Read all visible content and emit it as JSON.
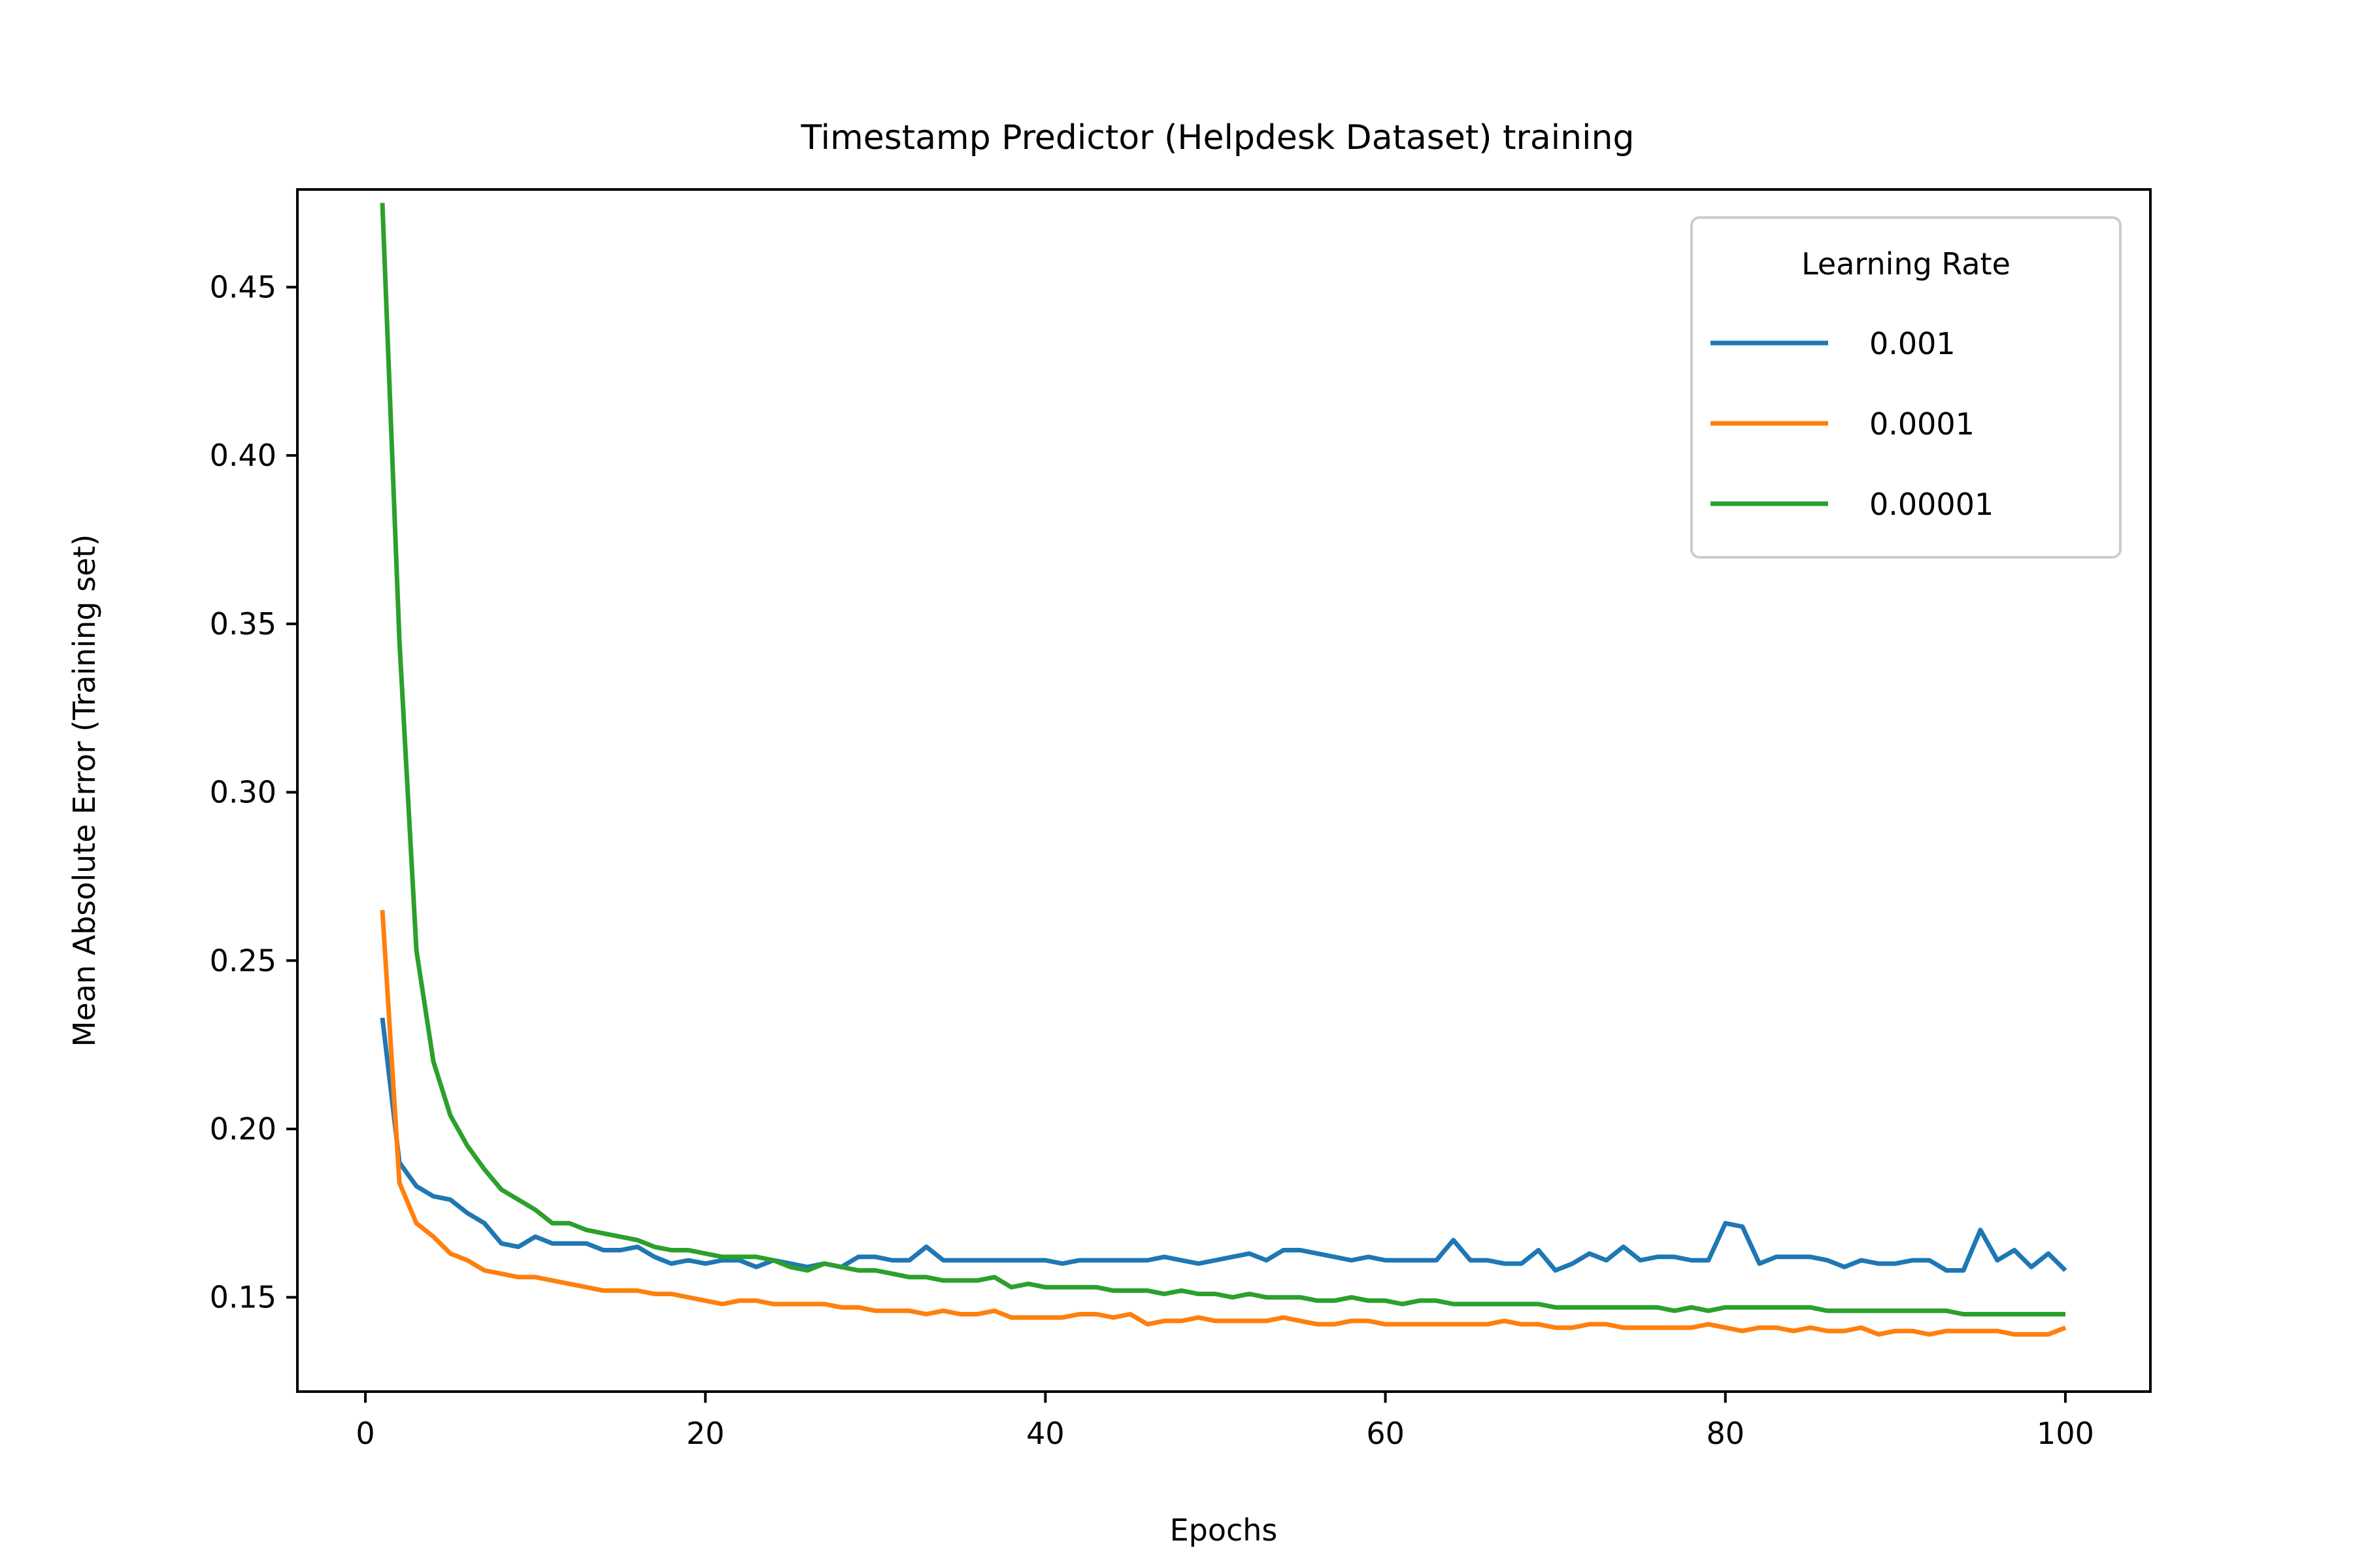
{
  "chart_data": {
    "type": "line",
    "title": "Timestamp Predictor (Helpdesk Dataset) training",
    "xlabel": "Epochs",
    "ylabel": "Mean Absolute Error (Training set)",
    "xlim": [
      -4,
      105
    ],
    "ylim": [
      0.122,
      0.479
    ],
    "xticks": [
      0,
      20,
      40,
      60,
      80,
      100
    ],
    "yticks": [
      0.15,
      0.2,
      0.25,
      0.3,
      0.35,
      0.4,
      0.45
    ],
    "xtick_labels": [
      "0",
      "20",
      "40",
      "60",
      "80",
      "100"
    ],
    "ytick_labels": [
      "0.15",
      "0.20",
      "0.25",
      "0.30",
      "0.35",
      "0.40",
      "0.45"
    ],
    "grid": false,
    "legend": {
      "title": "Learning Rate",
      "position": "top-right"
    },
    "series": [
      {
        "name": "0.001",
        "color": "#1f77b4",
        "x": [
          1,
          2,
          3,
          4,
          5,
          6,
          7,
          8,
          9,
          10,
          11,
          12,
          13,
          14,
          15,
          16,
          17,
          18,
          19,
          20,
          21,
          22,
          23,
          24,
          25,
          26,
          27,
          28,
          29,
          30,
          31,
          32,
          33,
          34,
          35,
          36,
          37,
          38,
          39,
          40,
          41,
          42,
          43,
          44,
          45,
          46,
          47,
          48,
          49,
          50,
          51,
          52,
          53,
          54,
          55,
          56,
          57,
          58,
          59,
          60,
          61,
          62,
          63,
          64,
          65,
          66,
          67,
          68,
          69,
          70,
          71,
          72,
          73,
          74,
          75,
          76,
          77,
          78,
          79,
          80,
          81,
          82,
          83,
          84,
          85,
          86,
          87,
          88,
          89,
          90,
          91,
          92,
          93,
          94,
          95,
          96,
          97,
          98,
          99,
          100
        ],
        "values": [
          0.233,
          0.19,
          0.183,
          0.18,
          0.179,
          0.175,
          0.172,
          0.166,
          0.165,
          0.168,
          0.166,
          0.166,
          0.166,
          0.164,
          0.164,
          0.165,
          0.162,
          0.16,
          0.161,
          0.16,
          0.161,
          0.161,
          0.159,
          0.161,
          0.16,
          0.159,
          0.16,
          0.159,
          0.162,
          0.162,
          0.161,
          0.161,
          0.165,
          0.161,
          0.161,
          0.161,
          0.161,
          0.161,
          0.161,
          0.161,
          0.16,
          0.161,
          0.161,
          0.161,
          0.161,
          0.161,
          0.162,
          0.161,
          0.16,
          0.161,
          0.162,
          0.163,
          0.161,
          0.164,
          0.164,
          0.163,
          0.162,
          0.161,
          0.162,
          0.161,
          0.161,
          0.161,
          0.161,
          0.167,
          0.161,
          0.161,
          0.16,
          0.16,
          0.164,
          0.158,
          0.16,
          0.163,
          0.161,
          0.165,
          0.161,
          0.162,
          0.162,
          0.161,
          0.161,
          0.172,
          0.171,
          0.16,
          0.162,
          0.162,
          0.162,
          0.161,
          0.159,
          0.161,
          0.16,
          0.16,
          0.161,
          0.161,
          0.158,
          0.158,
          0.17,
          0.161,
          0.164,
          0.159,
          0.163,
          0.158
        ]
      },
      {
        "name": "0.0001",
        "color": "#ff7f0e",
        "x": [
          1,
          2,
          3,
          4,
          5,
          6,
          7,
          8,
          9,
          10,
          11,
          12,
          13,
          14,
          15,
          16,
          17,
          18,
          19,
          20,
          21,
          22,
          23,
          24,
          25,
          26,
          27,
          28,
          29,
          30,
          31,
          32,
          33,
          34,
          35,
          36,
          37,
          38,
          39,
          40,
          41,
          42,
          43,
          44,
          45,
          46,
          47,
          48,
          49,
          50,
          51,
          52,
          53,
          54,
          55,
          56,
          57,
          58,
          59,
          60,
          61,
          62,
          63,
          64,
          65,
          66,
          67,
          68,
          69,
          70,
          71,
          72,
          73,
          74,
          75,
          76,
          77,
          78,
          79,
          80,
          81,
          82,
          83,
          84,
          85,
          86,
          87,
          88,
          89,
          90,
          91,
          92,
          93,
          94,
          95,
          96,
          97,
          98,
          99,
          100
        ],
        "values": [
          0.265,
          0.184,
          0.172,
          0.168,
          0.163,
          0.161,
          0.158,
          0.157,
          0.156,
          0.156,
          0.155,
          0.154,
          0.153,
          0.152,
          0.152,
          0.152,
          0.151,
          0.151,
          0.15,
          0.149,
          0.148,
          0.149,
          0.149,
          0.148,
          0.148,
          0.148,
          0.148,
          0.147,
          0.147,
          0.146,
          0.146,
          0.146,
          0.145,
          0.146,
          0.145,
          0.145,
          0.146,
          0.144,
          0.144,
          0.144,
          0.144,
          0.145,
          0.145,
          0.144,
          0.145,
          0.142,
          0.143,
          0.143,
          0.144,
          0.143,
          0.143,
          0.143,
          0.143,
          0.144,
          0.143,
          0.142,
          0.142,
          0.143,
          0.143,
          0.142,
          0.142,
          0.142,
          0.142,
          0.142,
          0.142,
          0.142,
          0.143,
          0.142,
          0.142,
          0.141,
          0.141,
          0.142,
          0.142,
          0.141,
          0.141,
          0.141,
          0.141,
          0.141,
          0.142,
          0.141,
          0.14,
          0.141,
          0.141,
          0.14,
          0.141,
          0.14,
          0.14,
          0.141,
          0.139,
          0.14,
          0.14,
          0.139,
          0.14,
          0.14,
          0.14,
          0.14,
          0.139,
          0.139,
          0.139,
          0.141
        ]
      },
      {
        "name": "0.00001",
        "color": "#2ca02c",
        "x": [
          1,
          2,
          3,
          4,
          5,
          6,
          7,
          8,
          9,
          10,
          11,
          12,
          13,
          14,
          15,
          16,
          17,
          18,
          19,
          20,
          21,
          22,
          23,
          24,
          25,
          26,
          27,
          28,
          29,
          30,
          31,
          32,
          33,
          34,
          35,
          36,
          37,
          38,
          39,
          40,
          41,
          42,
          43,
          44,
          45,
          46,
          47,
          48,
          49,
          50,
          51,
          52,
          53,
          54,
          55,
          56,
          57,
          58,
          59,
          60,
          61,
          62,
          63,
          64,
          65,
          66,
          67,
          68,
          69,
          70,
          71,
          72,
          73,
          74,
          75,
          76,
          77,
          78,
          79,
          80,
          81,
          82,
          83,
          84,
          85,
          86,
          87,
          88,
          89,
          90,
          91,
          92,
          93,
          94,
          95,
          96,
          97,
          98,
          99,
          100
        ],
        "values": [
          0.475,
          0.345,
          0.253,
          0.22,
          0.204,
          0.195,
          0.188,
          0.182,
          0.179,
          0.176,
          0.172,
          0.172,
          0.17,
          0.169,
          0.168,
          0.167,
          0.165,
          0.164,
          0.164,
          0.163,
          0.162,
          0.162,
          0.162,
          0.161,
          0.159,
          0.158,
          0.16,
          0.159,
          0.158,
          0.158,
          0.157,
          0.156,
          0.156,
          0.155,
          0.155,
          0.155,
          0.156,
          0.153,
          0.154,
          0.153,
          0.153,
          0.153,
          0.153,
          0.152,
          0.152,
          0.152,
          0.151,
          0.152,
          0.151,
          0.151,
          0.15,
          0.151,
          0.15,
          0.15,
          0.15,
          0.149,
          0.149,
          0.15,
          0.149,
          0.149,
          0.148,
          0.149,
          0.149,
          0.148,
          0.148,
          0.148,
          0.148,
          0.148,
          0.148,
          0.147,
          0.147,
          0.147,
          0.147,
          0.147,
          0.147,
          0.147,
          0.146,
          0.147,
          0.146,
          0.147,
          0.147,
          0.147,
          0.147,
          0.147,
          0.147,
          0.146,
          0.146,
          0.146,
          0.146,
          0.146,
          0.146,
          0.146,
          0.146,
          0.145,
          0.145,
          0.145,
          0.145,
          0.145,
          0.145,
          0.145
        ]
      }
    ]
  }
}
